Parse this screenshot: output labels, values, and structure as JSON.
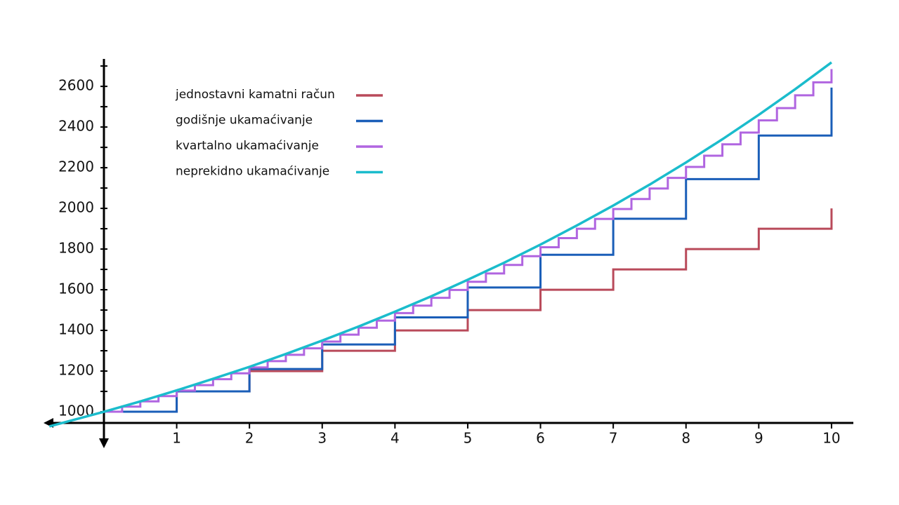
{
  "chart_data": {
    "type": "step",
    "xlim": [
      -0.83,
      10.3
    ],
    "ylim": [
      945,
      2735
    ],
    "xticks": [
      1,
      2,
      3,
      4,
      5,
      6,
      7,
      8,
      9,
      10
    ],
    "yticks": [
      1000,
      1200,
      1400,
      1600,
      1800,
      2000,
      2200,
      2400,
      2600
    ],
    "yticks_minor": [
      1100,
      1300,
      1500,
      1700,
      1900,
      2100,
      2300,
      2500,
      2700
    ],
    "legend": "upper left",
    "series": [
      {
        "name": "jednostavni kamatni račun",
        "color": "#b94a5a",
        "kind": "step",
        "x": [
          0,
          1,
          2,
          3,
          4,
          5,
          6,
          7,
          8,
          9,
          10
        ],
        "values": [
          1000,
          1100,
          1200,
          1300,
          1400,
          1500,
          1600,
          1700,
          1800,
          1900,
          2000
        ]
      },
      {
        "name": "godišnje ukamaćivanje",
        "color": "#1a5eb8",
        "kind": "step",
        "x": [
          0,
          1,
          2,
          3,
          4,
          5,
          6,
          7,
          8,
          9,
          10
        ],
        "values": [
          1000,
          1100,
          1210,
          1331,
          1464,
          1611,
          1772,
          1949,
          2144,
          2358,
          2594
        ]
      },
      {
        "name": "kvartalno ukamaćivanje",
        "color": "#b065e0",
        "kind": "step",
        "x": [
          0,
          0.25,
          0.5,
          0.75,
          1,
          1.25,
          1.5,
          1.75,
          2,
          2.25,
          2.5,
          2.75,
          3,
          3.25,
          3.5,
          3.75,
          4,
          4.25,
          4.5,
          4.75,
          5,
          5.25,
          5.5,
          5.75,
          6,
          6.25,
          6.5,
          6.75,
          7,
          7.25,
          7.5,
          7.75,
          8,
          8.25,
          8.5,
          8.75,
          9,
          9.25,
          9.5,
          9.75,
          10
        ],
        "values": [
          1000,
          1025,
          1051,
          1077,
          1104,
          1131,
          1160,
          1189,
          1218,
          1249,
          1280,
          1312,
          1345,
          1379,
          1413,
          1448,
          1485,
          1522,
          1560,
          1599,
          1639,
          1680,
          1722,
          1765,
          1809,
          1854,
          1900,
          1948,
          1997,
          2046,
          2098,
          2150,
          2204,
          2259,
          2315,
          2373,
          2433,
          2493,
          2556,
          2620,
          2685
        ]
      },
      {
        "name": "neprekidno ukamaćivanje",
        "color": "#1bbccc",
        "kind": "line",
        "x": [
          -0.75,
          0,
          0.5,
          1,
          1.5,
          2,
          2.5,
          3,
          3.5,
          4,
          4.5,
          5,
          5.5,
          6,
          6.5,
          7,
          7.5,
          8,
          8.5,
          9,
          9.5,
          10
        ],
        "values": [
          928,
          1000,
          1051,
          1105,
          1162,
          1221,
          1284,
          1350,
          1419,
          1492,
          1568,
          1649,
          1733,
          1822,
          1916,
          2014,
          2117,
          2226,
          2340,
          2460,
          2586,
          2718
        ]
      }
    ]
  }
}
